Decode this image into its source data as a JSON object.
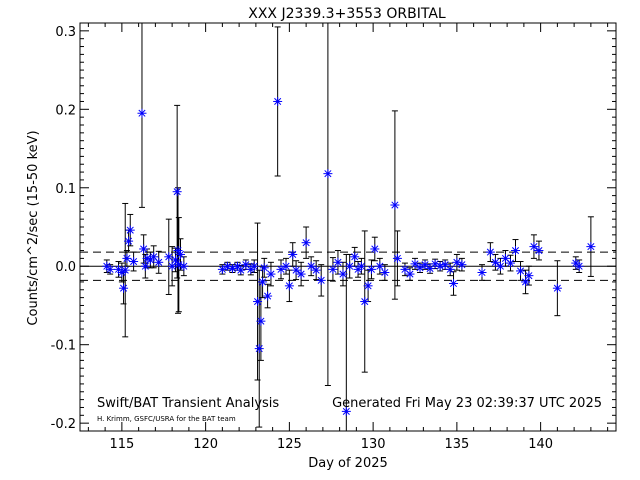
{
  "chart_data": {
    "type": "scatter",
    "title": "XXX J2339.3+3553 ORBITAL",
    "xlabel": "Day of 2025",
    "ylabel": "Counts/cm^2/sec (15-50 keV)",
    "xlim": [
      112.5,
      144.5
    ],
    "ylim": [
      -0.21,
      0.31
    ],
    "x_ticks": [
      115,
      120,
      125,
      130,
      135,
      140
    ],
    "y_ticks": [
      -0.2,
      -0.1,
      0.0,
      0.1,
      0.2,
      0.3
    ],
    "x_tick_labels": [
      "115",
      "120",
      "125",
      "130",
      "135",
      "140"
    ],
    "y_tick_labels": [
      "-0.2",
      "-0.1",
      "0.0",
      "0.1",
      "0.2",
      "0.3"
    ],
    "grid": false,
    "reference_lines": [
      {
        "y": 0.0,
        "style": "solid"
      },
      {
        "y": 0.018,
        "style": "dashed"
      },
      {
        "y": -0.018,
        "style": "dashed"
      }
    ],
    "colors": {
      "points": "#0000ff",
      "errorbars": "#000000",
      "axes": "#000000"
    },
    "series": [
      {
        "marker": "asterisk",
        "points": [
          {
            "x": 114.1,
            "y": 0.0,
            "err": 0.008
          },
          {
            "x": 114.3,
            "y": -0.004,
            "err": 0.006
          },
          {
            "x": 114.8,
            "y": -0.004,
            "err": 0.01
          },
          {
            "x": 115.0,
            "y": -0.008,
            "err": 0.012
          },
          {
            "x": 115.1,
            "y": -0.028,
            "err": 0.02
          },
          {
            "x": 115.2,
            "y": -0.005,
            "err": 0.085
          },
          {
            "x": 115.3,
            "y": 0.01,
            "err": 0.01
          },
          {
            "x": 115.4,
            "y": 0.032,
            "err": 0.014
          },
          {
            "x": 115.5,
            "y": 0.046,
            "err": 0.02
          },
          {
            "x": 115.7,
            "y": 0.006,
            "err": 0.012
          },
          {
            "x": 116.2,
            "y": 0.195,
            "err": 0.12
          },
          {
            "x": 116.3,
            "y": 0.022,
            "err": 0.018
          },
          {
            "x": 116.4,
            "y": 0.0,
            "err": 0.015
          },
          {
            "x": 116.5,
            "y": 0.01,
            "err": 0.012
          },
          {
            "x": 116.7,
            "y": 0.008,
            "err": 0.01
          },
          {
            "x": 116.9,
            "y": 0.012,
            "err": 0.014
          },
          {
            "x": 117.2,
            "y": 0.005,
            "err": 0.014
          },
          {
            "x": 117.8,
            "y": 0.012,
            "err": 0.048
          },
          {
            "x": 118.0,
            "y": 0.0,
            "err": 0.025
          },
          {
            "x": 118.2,
            "y": 0.008,
            "err": 0.015
          },
          {
            "x": 118.3,
            "y": 0.095,
            "err": 0.11
          },
          {
            "x": 118.35,
            "y": 0.02,
            "err": 0.08
          },
          {
            "x": 118.4,
            "y": 0.002,
            "err": 0.06
          },
          {
            "x": 118.5,
            "y": 0.015,
            "err": 0.02
          },
          {
            "x": 118.7,
            "y": 0.0,
            "err": 0.012
          },
          {
            "x": 121.0,
            "y": -0.004,
            "err": 0.006
          },
          {
            "x": 121.3,
            "y": 0.0,
            "err": 0.005
          },
          {
            "x": 121.6,
            "y": -0.003,
            "err": 0.005
          },
          {
            "x": 121.9,
            "y": 0.0,
            "err": 0.005
          },
          {
            "x": 122.1,
            "y": -0.005,
            "err": 0.006
          },
          {
            "x": 122.4,
            "y": 0.002,
            "err": 0.006
          },
          {
            "x": 122.7,
            "y": -0.004,
            "err": 0.007
          },
          {
            "x": 122.9,
            "y": 0.0,
            "err": 0.008
          },
          {
            "x": 123.1,
            "y": -0.045,
            "err": 0.1
          },
          {
            "x": 123.2,
            "y": -0.105,
            "err": 0.1
          },
          {
            "x": 123.3,
            "y": -0.07,
            "err": 0.05
          },
          {
            "x": 123.4,
            "y": -0.02,
            "err": 0.02
          },
          {
            "x": 123.5,
            "y": -0.002,
            "err": 0.012
          },
          {
            "x": 123.7,
            "y": -0.038,
            "err": 0.015
          },
          {
            "x": 123.9,
            "y": -0.01,
            "err": 0.015
          },
          {
            "x": 124.3,
            "y": 0.21,
            "err": 0.095
          },
          {
            "x": 124.5,
            "y": -0.004,
            "err": 0.012
          },
          {
            "x": 124.8,
            "y": 0.0,
            "err": 0.01
          },
          {
            "x": 125.0,
            "y": -0.025,
            "err": 0.02
          },
          {
            "x": 125.2,
            "y": 0.015,
            "err": 0.015
          },
          {
            "x": 125.4,
            "y": -0.005,
            "err": 0.012
          },
          {
            "x": 125.7,
            "y": -0.01,
            "err": 0.015
          },
          {
            "x": 126.0,
            "y": 0.03,
            "err": 0.02
          },
          {
            "x": 126.3,
            "y": 0.0,
            "err": 0.012
          },
          {
            "x": 126.6,
            "y": -0.005,
            "err": 0.012
          },
          {
            "x": 126.9,
            "y": -0.018,
            "err": 0.02
          },
          {
            "x": 127.3,
            "y": 0.118,
            "err": 0.27
          },
          {
            "x": 127.6,
            "y": -0.004,
            "err": 0.015
          },
          {
            "x": 127.9,
            "y": 0.005,
            "err": 0.015
          },
          {
            "x": 128.2,
            "y": -0.01,
            "err": 0.015
          },
          {
            "x": 128.4,
            "y": -0.185,
            "err": 0.2
          },
          {
            "x": 128.6,
            "y": 0.0,
            "err": 0.015
          },
          {
            "x": 128.9,
            "y": 0.012,
            "err": 0.012
          },
          {
            "x": 129.1,
            "y": -0.004,
            "err": 0.01
          },
          {
            "x": 129.3,
            "y": 0.0,
            "err": 0.01
          },
          {
            "x": 129.5,
            "y": -0.045,
            "err": 0.09
          },
          {
            "x": 129.7,
            "y": -0.025,
            "err": 0.02
          },
          {
            "x": 129.9,
            "y": -0.004,
            "err": 0.012
          },
          {
            "x": 130.1,
            "y": 0.022,
            "err": 0.015
          },
          {
            "x": 130.4,
            "y": 0.0,
            "err": 0.01
          },
          {
            "x": 130.7,
            "y": -0.008,
            "err": 0.01
          },
          {
            "x": 131.3,
            "y": 0.078,
            "err": 0.12
          },
          {
            "x": 131.45,
            "y": 0.01,
            "err": 0.035
          },
          {
            "x": 131.9,
            "y": -0.004,
            "err": 0.008
          },
          {
            "x": 132.2,
            "y": -0.01,
            "err": 0.008
          },
          {
            "x": 132.5,
            "y": 0.003,
            "err": 0.007
          },
          {
            "x": 132.8,
            "y": -0.002,
            "err": 0.006
          },
          {
            "x": 133.1,
            "y": 0.002,
            "err": 0.006
          },
          {
            "x": 133.4,
            "y": -0.003,
            "err": 0.006
          },
          {
            "x": 133.7,
            "y": 0.003,
            "err": 0.006
          },
          {
            "x": 134.0,
            "y": 0.0,
            "err": 0.006
          },
          {
            "x": 134.3,
            "y": 0.002,
            "err": 0.006
          },
          {
            "x": 134.6,
            "y": -0.004,
            "err": 0.008
          },
          {
            "x": 134.8,
            "y": -0.022,
            "err": 0.015
          },
          {
            "x": 135.0,
            "y": 0.005,
            "err": 0.01
          },
          {
            "x": 135.3,
            "y": 0.002,
            "err": 0.008
          },
          {
            "x": 136.5,
            "y": -0.008,
            "err": 0.01
          },
          {
            "x": 137.0,
            "y": 0.018,
            "err": 0.012
          },
          {
            "x": 137.3,
            "y": 0.005,
            "err": 0.01
          },
          {
            "x": 137.6,
            "y": 0.0,
            "err": 0.01
          },
          {
            "x": 137.9,
            "y": 0.01,
            "err": 0.01
          },
          {
            "x": 138.2,
            "y": 0.004,
            "err": 0.01
          },
          {
            "x": 138.5,
            "y": 0.02,
            "err": 0.014
          },
          {
            "x": 138.8,
            "y": -0.006,
            "err": 0.012
          },
          {
            "x": 139.1,
            "y": -0.02,
            "err": 0.015
          },
          {
            "x": 139.3,
            "y": -0.012,
            "err": 0.012
          },
          {
            "x": 139.6,
            "y": 0.025,
            "err": 0.015
          },
          {
            "x": 139.9,
            "y": 0.02,
            "err": 0.012
          },
          {
            "x": 141.0,
            "y": -0.028,
            "err": 0.035
          },
          {
            "x": 142.1,
            "y": 0.004,
            "err": 0.008
          },
          {
            "x": 142.3,
            "y": 0.0,
            "err": 0.008
          },
          {
            "x": 143.0,
            "y": 0.025,
            "err": 0.038
          }
        ]
      }
    ],
    "annotations": [
      {
        "text": "Swift/BAT Transient Analysis",
        "position": "bottom-left"
      },
      {
        "text": "H. Krimm, GSFC/USRA for the BAT team",
        "position": "bottom-left"
      },
      {
        "text": "Generated Fri May 23 02:39:37 UTC 2025",
        "position": "bottom-right"
      }
    ]
  }
}
